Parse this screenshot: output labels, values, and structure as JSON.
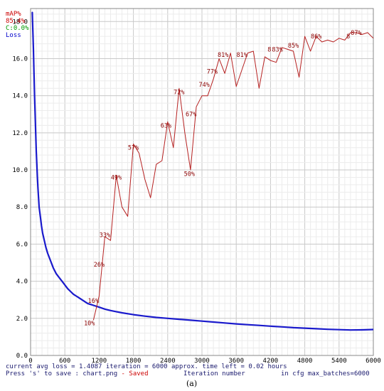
{
  "chart_data": {
    "type": "line",
    "title": "",
    "xlabel": "Iteration number",
    "ylabel": "",
    "xlim": [
      0,
      6000
    ],
    "ylim": [
      0,
      18
    ],
    "x_ticks": [
      "0",
      "600",
      "1200",
      "1800",
      "2400",
      "3000",
      "3600",
      "4200",
      "4800",
      "5400",
      "6000"
    ],
    "y_ticks": [
      "0.0",
      "2.0",
      "4.0",
      "6.0",
      "8.0",
      "10.0",
      "12.0",
      "14.0",
      "16.0",
      "18.0"
    ],
    "grid": true,
    "legend": {
      "placement": "top-left",
      "items": [
        {
          "label": "mAP%",
          "color": "#cc0000"
        },
        {
          "label": "85.4%",
          "color": "#cc0000"
        },
        {
          "label": "C:0.0%",
          "color": "#009900"
        },
        {
          "label": "Loss",
          "color": "#0000cc"
        }
      ]
    },
    "series": [
      {
        "name": "Loss",
        "color": "#1a1acc",
        "points": [
          [
            30,
            18.5
          ],
          [
            40,
            17.5
          ],
          [
            50,
            16.5
          ],
          [
            60,
            15.2
          ],
          [
            70,
            14.0
          ],
          [
            80,
            13.0
          ],
          [
            90,
            12.0
          ],
          [
            100,
            11.0
          ],
          [
            110,
            10.3
          ],
          [
            120,
            9.6
          ],
          [
            130,
            9.0
          ],
          [
            140,
            8.5
          ],
          [
            150,
            8.0
          ],
          [
            170,
            7.5
          ],
          [
            190,
            7.0
          ],
          [
            210,
            6.6
          ],
          [
            240,
            6.2
          ],
          [
            270,
            5.8
          ],
          [
            300,
            5.5
          ],
          [
            350,
            5.1
          ],
          [
            400,
            4.7
          ],
          [
            450,
            4.4
          ],
          [
            500,
            4.2
          ],
          [
            550,
            4.0
          ],
          [
            600,
            3.8
          ],
          [
            650,
            3.6
          ],
          [
            700,
            3.45
          ],
          [
            750,
            3.3
          ],
          [
            800,
            3.2
          ],
          [
            850,
            3.1
          ],
          [
            900,
            3.0
          ],
          [
            950,
            2.9
          ],
          [
            1000,
            2.8
          ],
          [
            1100,
            2.7
          ],
          [
            1200,
            2.6
          ],
          [
            1300,
            2.5
          ],
          [
            1400,
            2.42
          ],
          [
            1500,
            2.36
          ],
          [
            1600,
            2.3
          ],
          [
            1800,
            2.2
          ],
          [
            2000,
            2.12
          ],
          [
            2200,
            2.05
          ],
          [
            2400,
            2.0
          ],
          [
            2600,
            1.95
          ],
          [
            2800,
            1.9
          ],
          [
            3000,
            1.85
          ],
          [
            3200,
            1.8
          ],
          [
            3400,
            1.75
          ],
          [
            3600,
            1.7
          ],
          [
            3800,
            1.66
          ],
          [
            4000,
            1.62
          ],
          [
            4200,
            1.58
          ],
          [
            4400,
            1.54
          ],
          [
            4600,
            1.5
          ],
          [
            4800,
            1.47
          ],
          [
            5000,
            1.44
          ],
          [
            5200,
            1.41
          ],
          [
            5400,
            1.39
          ],
          [
            5600,
            1.37
          ],
          [
            5800,
            1.38
          ],
          [
            6000,
            1.4
          ]
        ]
      },
      {
        "name": "mAP%",
        "color": "#b52020",
        "points": [
          [
            1100,
            1.9
          ],
          [
            1200,
            3.2
          ],
          [
            1300,
            6.4
          ],
          [
            1400,
            6.2
          ],
          [
            1500,
            9.7
          ],
          [
            1600,
            8.0
          ],
          [
            1700,
            7.5
          ],
          [
            1800,
            11.4
          ],
          [
            1900,
            10.9
          ],
          [
            2000,
            9.5
          ],
          [
            2100,
            8.5
          ],
          [
            2200,
            10.3
          ],
          [
            2300,
            10.5
          ],
          [
            2400,
            12.6
          ],
          [
            2500,
            11.2
          ],
          [
            2600,
            14.4
          ],
          [
            2700,
            12.0
          ],
          [
            2800,
            10.0
          ],
          [
            2900,
            13.4
          ],
          [
            3000,
            14.0
          ],
          [
            3100,
            14.0
          ],
          [
            3200,
            14.9
          ],
          [
            3300,
            16.0
          ],
          [
            3400,
            15.2
          ],
          [
            3500,
            16.3
          ],
          [
            3600,
            14.5
          ],
          [
            3700,
            15.4
          ],
          [
            3800,
            16.3
          ],
          [
            3900,
            16.4
          ],
          [
            4000,
            14.4
          ],
          [
            4100,
            16.1
          ],
          [
            4200,
            15.9
          ],
          [
            4300,
            15.8
          ],
          [
            4400,
            16.6
          ],
          [
            4500,
            16.5
          ],
          [
            4600,
            16.4
          ],
          [
            4700,
            15.0
          ],
          [
            4800,
            17.2
          ],
          [
            4900,
            16.4
          ],
          [
            5000,
            17.2
          ],
          [
            5100,
            16.9
          ],
          [
            5200,
            17.0
          ],
          [
            5300,
            16.9
          ],
          [
            5400,
            17.1
          ],
          [
            5500,
            17.0
          ],
          [
            5600,
            17.4
          ],
          [
            5700,
            17.4
          ],
          [
            5800,
            17.3
          ],
          [
            5900,
            17.4
          ],
          [
            6000,
            17.1
          ]
        ]
      }
    ],
    "annotations": [
      {
        "text": "10%",
        "x": 1030,
        "y": 1.75
      },
      {
        "text": "16%",
        "x": 1100,
        "y": 2.95
      },
      {
        "text": "26%",
        "x": 1200,
        "y": 4.9
      },
      {
        "text": "33%",
        "x": 1300,
        "y": 6.5
      },
      {
        "text": "49%",
        "x": 1500,
        "y": 9.6
      },
      {
        "text": "57%",
        "x": 1800,
        "y": 11.2
      },
      {
        "text": "63%",
        "x": 2370,
        "y": 12.4
      },
      {
        "text": "72%",
        "x": 2600,
        "y": 14.2
      },
      {
        "text": "50%",
        "x": 2780,
        "y": 9.8
      },
      {
        "text": "67%",
        "x": 2810,
        "y": 13.0
      },
      {
        "text": "74%",
        "x": 3040,
        "y": 14.6
      },
      {
        "text": "77%",
        "x": 3180,
        "y": 15.3
      },
      {
        "text": "81%",
        "x": 3370,
        "y": 16.2
      },
      {
        "text": "81%",
        "x": 3700,
        "y": 16.2
      },
      {
        "text": "8",
        "x": 4180,
        "y": 16.5
      },
      {
        "text": "83%",
        "x": 4320,
        "y": 16.5
      },
      {
        "text": "85%",
        "x": 4600,
        "y": 16.7
      },
      {
        "text": "86%",
        "x": 5000,
        "y": 17.2
      },
      {
        "text": "8",
        "x": 5560,
        "y": 17.2
      },
      {
        "text": "87%",
        "x": 5700,
        "y": 17.4
      }
    ]
  },
  "status": {
    "line1": "current avg loss = 1.4087   iteration = 6000    approx. time left = 0.02 hours",
    "line2_prefix": "Press 's' to save : chart.png",
    "line2_saved": " - Saved",
    "xlabel": "Iteration number",
    "max_batches": "in cfg max_batches=6000"
  },
  "caption": "(a)"
}
